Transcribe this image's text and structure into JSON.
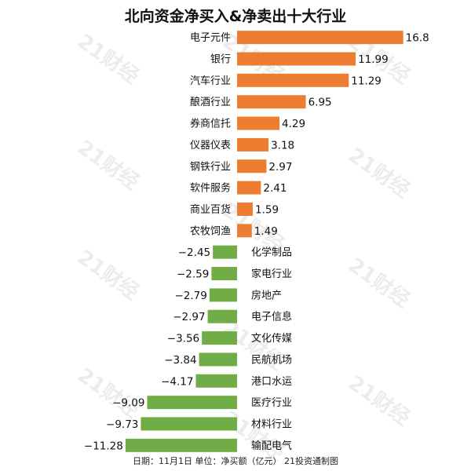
{
  "chart_data": {
    "type": "bar",
    "orientation": "horizontal",
    "title": "北向资金净买入&净卖出十大行业",
    "categories": [
      "电子元件",
      "银行",
      "汽车行业",
      "酿酒行业",
      "券商信托",
      "仪器仪表",
      "钢铁行业",
      "软件服务",
      "商业百货",
      "农牧饲渔",
      "化学制品",
      "家电行业",
      "房地产",
      "电子信息",
      "文化传媒",
      "民航机场",
      "港口水运",
      "医疗行业",
      "材料行业",
      "输配电气"
    ],
    "values": [
      16.8,
      11.99,
      11.29,
      6.95,
      4.29,
      3.18,
      2.97,
      2.41,
      1.59,
      1.49,
      -2.45,
      -2.59,
      -2.79,
      -2.97,
      -3.56,
      -3.84,
      -4.17,
      -9.09,
      -9.73,
      -11.28
    ],
    "value_labels": [
      "16.8",
      "11.99",
      "11.29",
      "6.95",
      "4.29",
      "3.18",
      "2.97",
      "2.41",
      "1.59",
      "1.49",
      "−2.45",
      "−2.59",
      "−2.79",
      "−2.97",
      "−3.56",
      "−3.84",
      "−4.17",
      "−9.09",
      "−9.73",
      "−11.28"
    ],
    "colors": {
      "positive": "#ED7D31",
      "negative": "#70AD47"
    },
    "grid": false,
    "legend": "none"
  },
  "footer": "日期：11月1日 单位：净买额（亿元） 21投资通制图",
  "watermark": "21财经"
}
